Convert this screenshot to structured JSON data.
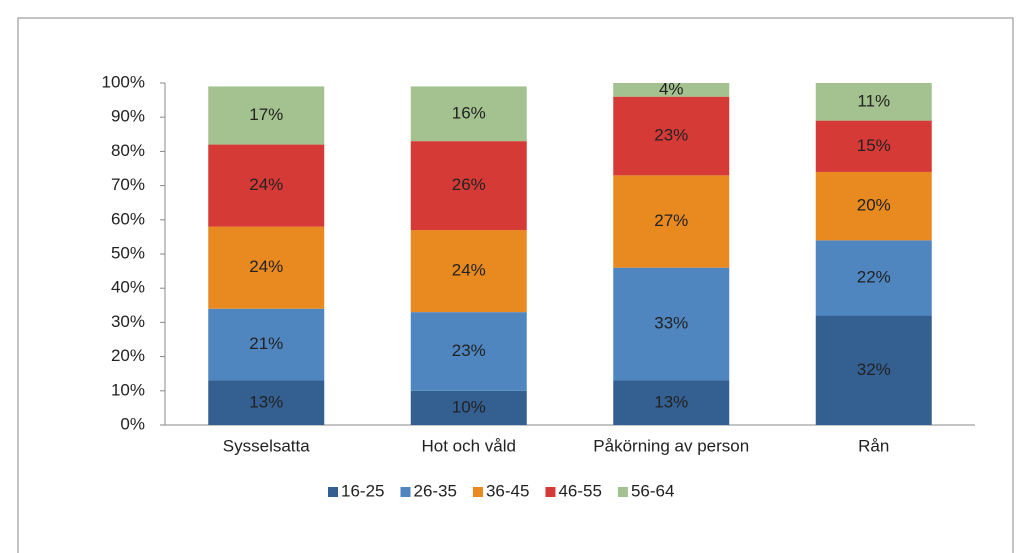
{
  "chart_data": {
    "type": "stacked_bar",
    "categories": [
      "Sysselsatta",
      "Hot och våld",
      "Påkörning av person",
      "Rån"
    ],
    "series": [
      {
        "name": "16-25",
        "color": "#335f91",
        "values": [
          13,
          10,
          13,
          32
        ],
        "value_labels": [
          "13%",
          "10%",
          "13%",
          "32%"
        ]
      },
      {
        "name": "26-35",
        "color": "#4f86c0",
        "values": [
          21,
          23,
          33,
          22
        ],
        "value_labels": [
          "21%",
          "23%",
          "33%",
          "22%"
        ]
      },
      {
        "name": "36-45",
        "color": "#e88a1f",
        "values": [
          24,
          24,
          27,
          20
        ],
        "value_labels": [
          "24%",
          "24%",
          "27%",
          "20%"
        ]
      },
      {
        "name": "46-55",
        "color": "#d63a36",
        "values": [
          24,
          26,
          23,
          15
        ],
        "value_labels": [
          "24%",
          "26%",
          "23%",
          "15%"
        ]
      },
      {
        "name": "56-64",
        "color": "#a4c28f",
        "values": [
          17,
          16,
          4,
          11
        ],
        "value_labels": [
          "17%",
          "16%",
          "4%",
          "11%"
        ]
      }
    ],
    "ylim": [
      0,
      100
    ],
    "yticks": [
      {
        "value": 0,
        "label": "0%"
      },
      {
        "value": 10,
        "label": "10%"
      },
      {
        "value": 20,
        "label": "20%"
      },
      {
        "value": 30,
        "label": "30%"
      },
      {
        "value": 40,
        "label": "40%"
      },
      {
        "value": 50,
        "label": "50%"
      },
      {
        "value": 60,
        "label": "60%"
      },
      {
        "value": 70,
        "label": "70%"
      },
      {
        "value": 80,
        "label": "80%"
      },
      {
        "value": 90,
        "label": "90%"
      },
      {
        "value": 100,
        "label": "100%"
      }
    ],
    "legend": "bottom"
  }
}
